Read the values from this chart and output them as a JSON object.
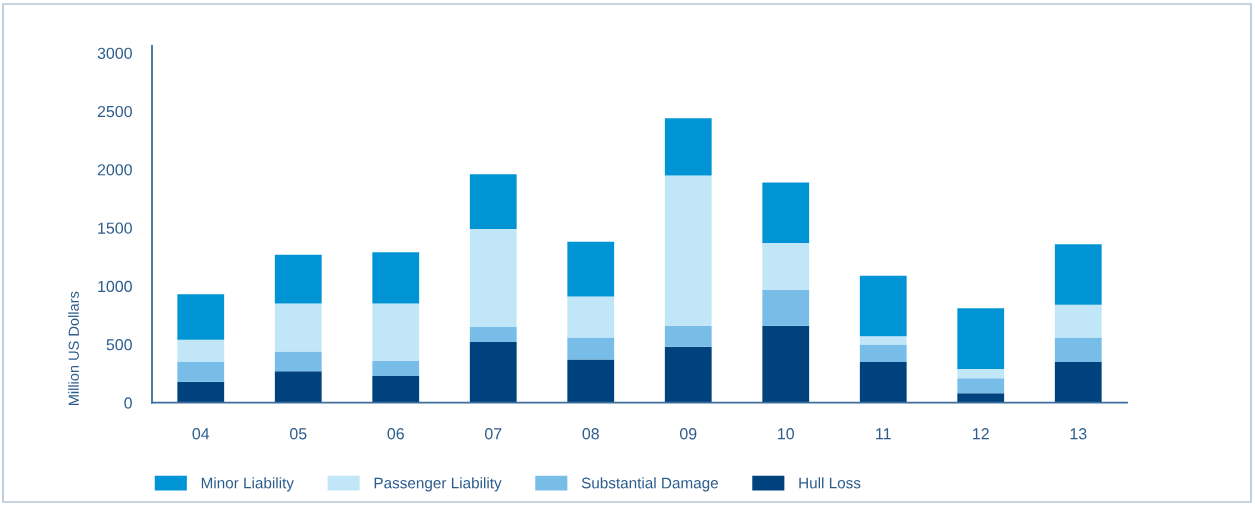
{
  "chart_data": {
    "type": "bar",
    "stacked": true,
    "ylabel": "Million US Dollars",
    "categories": [
      "04",
      "05",
      "06",
      "07",
      "08",
      "09",
      "10",
      "11",
      "12",
      "13"
    ],
    "series": [
      {
        "name": "Hull Loss",
        "color": "#00427d",
        "values": [
          180,
          270,
          230,
          520,
          370,
          480,
          660,
          350,
          80,
          350
        ]
      },
      {
        "name": "Substantial Damage",
        "color": "#78bde8",
        "values": [
          170,
          170,
          130,
          130,
          190,
          180,
          310,
          150,
          130,
          210
        ]
      },
      {
        "name": "Passenger Liability",
        "color": "#c0e6f8",
        "values": [
          190,
          410,
          490,
          840,
          350,
          1290,
          400,
          70,
          80,
          280
        ]
      },
      {
        "name": "Minor Liability",
        "color": "#0094d4",
        "values": [
          390,
          420,
          440,
          470,
          470,
          490,
          520,
          520,
          520,
          520
        ]
      }
    ],
    "ylim": [
      0,
      3060
    ],
    "yticks": [
      0,
      500,
      1000,
      1500,
      2000,
      2500,
      3000
    ],
    "grid": false,
    "legend": "bottom"
  }
}
